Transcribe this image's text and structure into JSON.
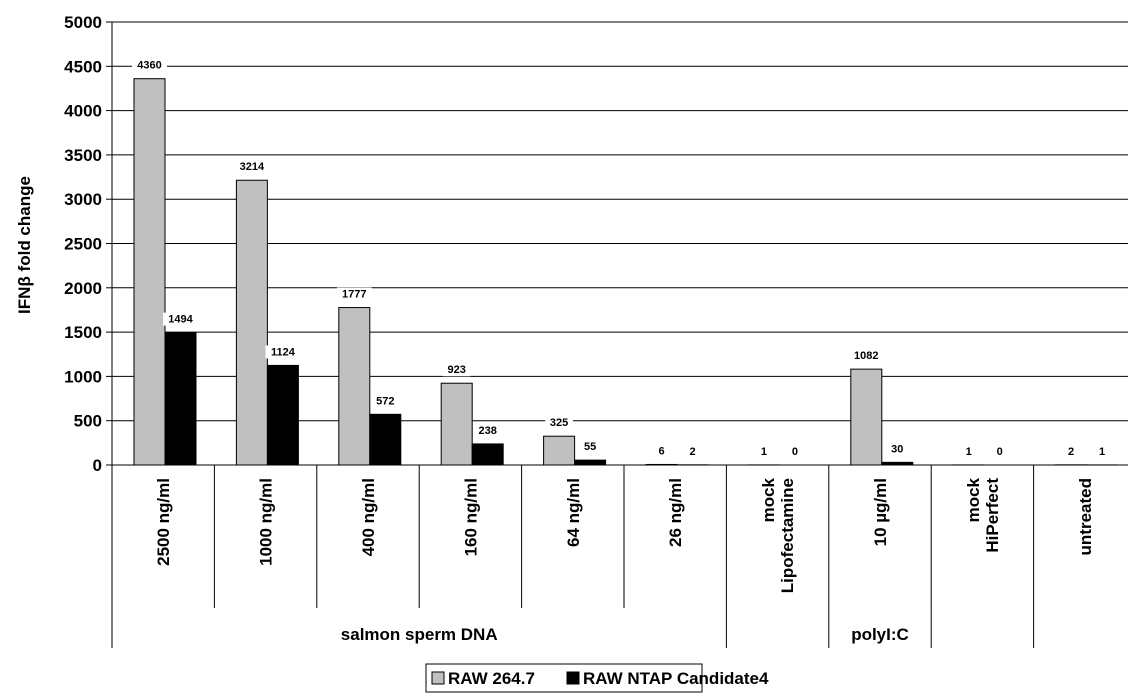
{
  "chart_data": {
    "type": "bar",
    "ylabel": "IFNβ fold change",
    "ylim": [
      0,
      5000
    ],
    "yticks": [
      0,
      500,
      1000,
      1500,
      2000,
      2500,
      3000,
      3500,
      4000,
      4500,
      5000
    ],
    "grid": true,
    "legend_position": "bottom",
    "categories": [
      "2500 ng/ml",
      "1000 ng/ml",
      "400 ng/ml",
      "160 ng/ml",
      "64 ng/ml",
      "26 ng/ml",
      "mock Lipofectamine",
      "10 µg/ml",
      "mock HiPerfect",
      "untreated"
    ],
    "category_lines": [
      [
        "2500 ng/ml"
      ],
      [
        "1000 ng/ml"
      ],
      [
        "400 ng/ml"
      ],
      [
        "160 ng/ml"
      ],
      [
        "64 ng/ml"
      ],
      [
        "26 ng/ml"
      ],
      [
        "mock",
        "Lipofectamine"
      ],
      [
        "10 µg/ml"
      ],
      [
        "mock",
        "HiPerfect"
      ],
      [
        "untreated"
      ]
    ],
    "groups": [
      {
        "label": "salmon sperm DNA",
        "start": 0,
        "end": 6
      },
      {
        "label": "",
        "start": 6,
        "end": 7
      },
      {
        "label": "polyI:C",
        "start": 7,
        "end": 8
      },
      {
        "label": "",
        "start": 8,
        "end": 9
      },
      {
        "label": "",
        "start": 9,
        "end": 10
      }
    ],
    "series": [
      {
        "name": "RAW 264.7",
        "color": "#c0c0c0",
        "values": [
          4360,
          3214,
          1777,
          923,
          325,
          6,
          1,
          1082,
          1,
          2
        ]
      },
      {
        "name": "RAW NTAP Candidate4",
        "color": "#000000",
        "values": [
          1494,
          1124,
          572,
          238,
          55,
          2,
          0,
          30,
          0,
          1
        ]
      }
    ]
  }
}
